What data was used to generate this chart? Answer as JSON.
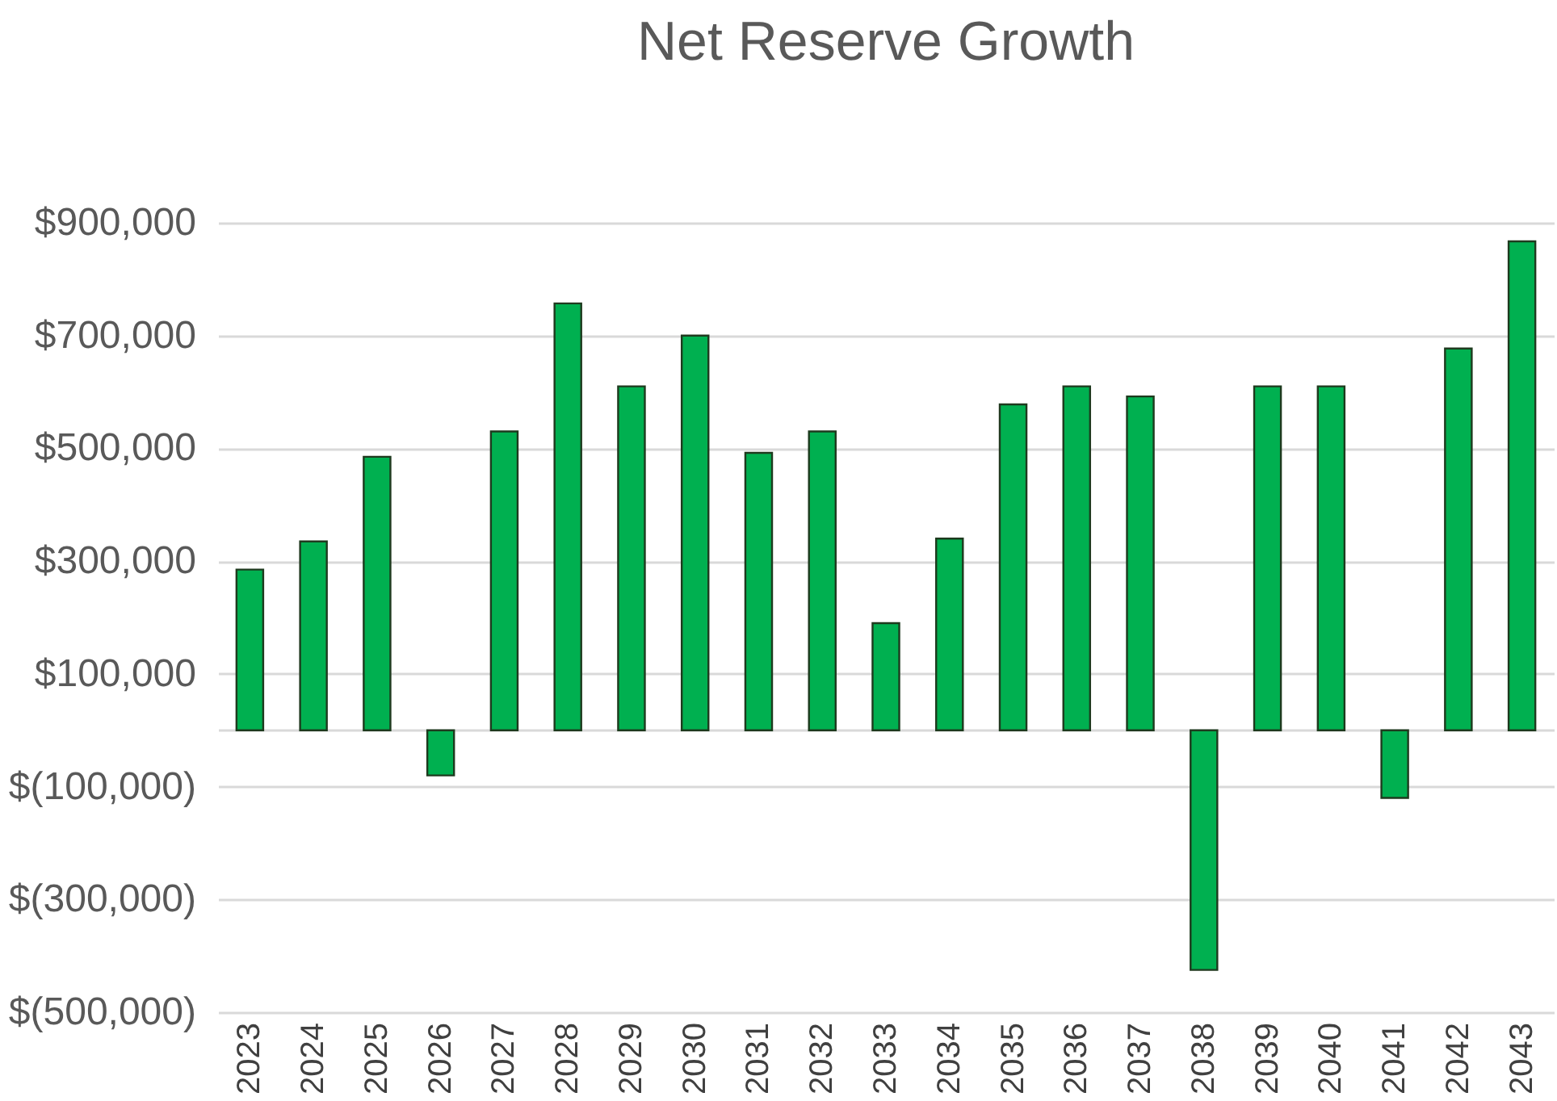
{
  "chart_data": {
    "type": "bar",
    "title": "Net Reserve Growth",
    "categories": [
      "2023",
      "2024",
      "2025",
      "2026",
      "2027",
      "2028",
      "2029",
      "2030",
      "2031",
      "2032",
      "2033",
      "2034",
      "2035",
      "2036",
      "2037",
      "2038",
      "2039",
      "2040",
      "2041",
      "2042",
      "2043"
    ],
    "values": [
      285000,
      335000,
      485000,
      -80000,
      530000,
      757000,
      610000,
      700000,
      492000,
      530000,
      190000,
      340000,
      578000,
      610000,
      592000,
      -425000,
      610000,
      610000,
      -120000,
      677000,
      867000
    ],
    "color": "#00b050",
    "ylim": [
      -500000,
      900000
    ],
    "yticks": [
      {
        "value": -500000,
        "label": "$(500,000)"
      },
      {
        "value": -300000,
        "label": "$(300,000)"
      },
      {
        "value": -100000,
        "label": "$(100,000)"
      },
      {
        "value": 0,
        "label": null
      },
      {
        "value": 100000,
        "label": "$100,000"
      },
      {
        "value": 300000,
        "label": "$300,000"
      },
      {
        "value": 500000,
        "label": "$500,000"
      },
      {
        "value": 700000,
        "label": "$700,000"
      },
      {
        "value": 900000,
        "label": "$900,000"
      }
    ],
    "grid": true
  }
}
